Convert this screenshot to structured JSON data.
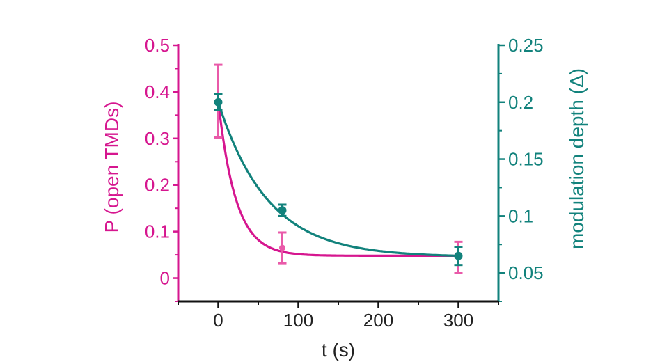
{
  "colors": {
    "left_axis": "#d6168f",
    "left_marker": "#e95aa9",
    "right_axis": "#12827c",
    "bottom_axis": "#111111",
    "background": "#ffffff"
  },
  "chart_data": {
    "type": "scatter",
    "title": "",
    "xlabel": "t (s)",
    "ylabel_left": "P (open TMDs)",
    "ylabel_right": "modulation depth (Δ)",
    "xlim": [
      -50,
      350
    ],
    "ylim_left": [
      -0.05,
      0.5
    ],
    "ylim_right": [
      0.025,
      0.25
    ],
    "x_ticks": [
      0,
      100,
      200,
      300
    ],
    "x_tick_labels": [
      "0",
      "100",
      "200",
      "300"
    ],
    "x_minor_ticks": [
      -50,
      50,
      150,
      250,
      350
    ],
    "y_left_ticks": [
      0,
      0.1,
      0.2,
      0.3,
      0.4,
      0.5
    ],
    "y_left_tick_labels": [
      "0",
      "0.1",
      "0.2",
      "0.3",
      "0.4",
      "0.5"
    ],
    "y_right_ticks": [
      0.05,
      0.1,
      0.15,
      0.2,
      0.25
    ],
    "y_right_tick_labels": [
      "0.05",
      "0.1",
      "0.15",
      "0.2",
      "0.25"
    ],
    "series": [
      {
        "name": "P (open TMDs)",
        "axis": "left",
        "points": [
          {
            "x": 0,
            "y": 0.38,
            "err": 0.078
          },
          {
            "x": 80,
            "y": 0.065,
            "err": 0.033
          },
          {
            "x": 300,
            "y": 0.045,
            "err": 0.033
          }
        ],
        "fit": {
          "model": "exp_decay",
          "y0": 0.38,
          "plateau": 0.048,
          "tau": 22
        }
      },
      {
        "name": "modulation depth (Δ)",
        "axis": "right",
        "points": [
          {
            "x": 0,
            "y": 0.2,
            "err": 0.007
          },
          {
            "x": 80,
            "y": 0.105,
            "err": 0.005
          },
          {
            "x": 300,
            "y": 0.065,
            "err": 0.008
          }
        ],
        "fit": {
          "model": "exp_decay",
          "y0": 0.2,
          "plateau": 0.064,
          "tau": 62
        }
      }
    ]
  }
}
